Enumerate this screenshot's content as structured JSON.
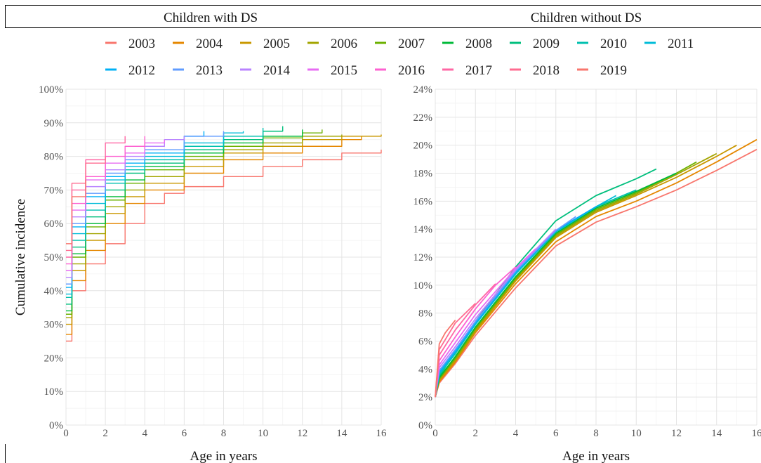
{
  "panels": {
    "left_title": "Children with DS",
    "right_title": "Children without DS"
  },
  "legend": {
    "entries": [
      {
        "label": "2003",
        "color": "#f8766d"
      },
      {
        "label": "2004",
        "color": "#e58700"
      },
      {
        "label": "2005",
        "color": "#c99800"
      },
      {
        "label": "2006",
        "color": "#a3a500"
      },
      {
        "label": "2007",
        "color": "#6bb100"
      },
      {
        "label": "2008",
        "color": "#00ba38"
      },
      {
        "label": "2009",
        "color": "#00bf7d"
      },
      {
        "label": "2010",
        "color": "#00c0af"
      },
      {
        "label": "2011",
        "color": "#00bcd8"
      },
      {
        "label": "2012",
        "color": "#00b0f6"
      },
      {
        "label": "2013",
        "color": "#619cff"
      },
      {
        "label": "2014",
        "color": "#b983ff"
      },
      {
        "label": "2015",
        "color": "#e76bf3"
      },
      {
        "label": "2016",
        "color": "#fd61d1"
      },
      {
        "label": "2017",
        "color": "#ff67a4"
      },
      {
        "label": "2018",
        "color": "#ff6c91"
      },
      {
        "label": "2019",
        "color": "#f8766d"
      }
    ]
  },
  "chart_data": [
    {
      "type": "line",
      "title": "Children with DS",
      "xlabel": "Age in years",
      "ylabel": "Cumulative incidence",
      "xlim": [
        0,
        16
      ],
      "ylim": [
        0,
        100
      ],
      "x_ticks": [
        "0",
        "2",
        "4",
        "6",
        "8",
        "10",
        "12",
        "14",
        "16"
      ],
      "y_ticks": [
        "0%",
        "10%",
        "20%",
        "30%",
        "40%",
        "50%",
        "60%",
        "70%",
        "80%",
        "90%",
        "100%"
      ],
      "grid": true,
      "series": [
        {
          "name": "2003",
          "x": [
            0,
            0.3,
            1,
            2,
            3,
            4,
            5,
            6,
            8,
            10,
            12,
            14,
            16
          ],
          "y": [
            25,
            40,
            48,
            54,
            60,
            66,
            69,
            71,
            74,
            77,
            79,
            81,
            82
          ]
        },
        {
          "name": "2004",
          "x": [
            0,
            0.3,
            1,
            2,
            3,
            4,
            6,
            8,
            10,
            12,
            14,
            15
          ],
          "y": [
            27,
            43,
            52,
            60,
            66,
            70,
            75,
            79,
            81,
            83,
            85,
            86
          ]
        },
        {
          "name": "2005",
          "x": [
            0,
            0.3,
            1,
            2,
            3,
            4,
            6,
            8,
            10,
            12,
            14,
            16
          ],
          "y": [
            30,
            46,
            55,
            63,
            68,
            72,
            77,
            81,
            83,
            85,
            86,
            86.5
          ]
        },
        {
          "name": "2006",
          "x": [
            0,
            0.3,
            1,
            2,
            3,
            4,
            6,
            8,
            10,
            12,
            14
          ],
          "y": [
            32,
            48,
            57,
            65,
            70,
            74,
            79,
            82,
            84,
            86,
            86.5
          ]
        },
        {
          "name": "2007",
          "x": [
            0,
            0.3,
            1,
            2,
            3,
            4,
            6,
            8,
            10,
            12,
            13
          ],
          "y": [
            33,
            50,
            59,
            67,
            72,
            76,
            80,
            83,
            85.5,
            87,
            88
          ]
        },
        {
          "name": "2008",
          "x": [
            0,
            0.3,
            1,
            2,
            3,
            4,
            6,
            8,
            10,
            12
          ],
          "y": [
            34,
            51,
            60,
            68,
            73,
            77,
            81,
            84,
            86,
            88
          ]
        },
        {
          "name": "2009",
          "x": [
            0,
            0.3,
            1,
            2,
            3,
            4,
            6,
            8,
            10,
            11
          ],
          "y": [
            36,
            53,
            62,
            70,
            75,
            78,
            82,
            85,
            87.5,
            89
          ]
        },
        {
          "name": "2010",
          "x": [
            0,
            0.3,
            1,
            2,
            3,
            4,
            6,
            8,
            10
          ],
          "y": [
            38,
            55,
            64,
            72,
            76,
            79,
            83,
            86,
            88.5
          ]
        },
        {
          "name": "2011",
          "x": [
            0,
            0.3,
            1,
            2,
            3,
            4,
            6,
            8,
            9
          ],
          "y": [
            39,
            57,
            66,
            73,
            77,
            80,
            84,
            87,
            87.5
          ]
        },
        {
          "name": "2012",
          "x": [
            0,
            0.3,
            1,
            2,
            3,
            4,
            6,
            7
          ],
          "y": [
            41,
            59,
            68,
            74,
            78,
            81,
            86,
            87.5
          ]
        },
        {
          "name": "2013",
          "x": [
            0,
            0.3,
            1,
            2,
            3,
            4,
            6,
            8
          ],
          "y": [
            42,
            60,
            69,
            75,
            79,
            82,
            86,
            87.5
          ]
        },
        {
          "name": "2014",
          "x": [
            0,
            0.3,
            1,
            2,
            3,
            4,
            5,
            6
          ],
          "y": [
            44,
            62,
            71,
            76,
            80,
            83,
            85,
            86
          ]
        },
        {
          "name": "2015",
          "x": [
            0,
            0.3,
            1,
            2,
            3,
            4,
            5
          ],
          "y": [
            46,
            64,
            73,
            78,
            81,
            84,
            85
          ]
        },
        {
          "name": "2016",
          "x": [
            0,
            0.3,
            1,
            2,
            3,
            4
          ],
          "y": [
            48,
            66,
            74,
            80,
            83,
            86
          ]
        },
        {
          "name": "2017",
          "x": [
            0,
            0.3,
            1,
            2,
            3
          ],
          "y": [
            50,
            70,
            79,
            84,
            86
          ]
        },
        {
          "name": "2018",
          "x": [
            0,
            0.3,
            1,
            2
          ],
          "y": [
            52,
            72,
            78,
            80
          ]
        },
        {
          "name": "2019",
          "x": [
            0,
            0.3,
            1
          ],
          "y": [
            54,
            68,
            73
          ]
        }
      ]
    },
    {
      "type": "line",
      "title": "Children without DS",
      "xlabel": "Age in years",
      "ylabel": "",
      "xlim": [
        0,
        16
      ],
      "ylim": [
        0,
        24
      ],
      "x_ticks": [
        "0",
        "2",
        "4",
        "6",
        "8",
        "10",
        "12",
        "14",
        "16"
      ],
      "y_ticks": [
        "0%",
        "2%",
        "4%",
        "6%",
        "8%",
        "10%",
        "12%",
        "14%",
        "16%",
        "18%",
        "20%",
        "22%",
        "24%"
      ],
      "grid": true,
      "series": [
        {
          "name": "2003",
          "x": [
            0,
            0.2,
            1,
            2,
            4,
            6,
            8,
            10,
            12,
            14,
            16
          ],
          "y": [
            2,
            3.0,
            4.4,
            6.4,
            9.8,
            12.8,
            14.5,
            15.6,
            16.8,
            18.2,
            19.7
          ]
        },
        {
          "name": "2004",
          "x": [
            0,
            0.2,
            1,
            2,
            4,
            6,
            8,
            10,
            12,
            14,
            16
          ],
          "y": [
            2,
            3.1,
            4.5,
            6.6,
            10.1,
            13.1,
            14.9,
            16.0,
            17.3,
            18.8,
            20.4
          ]
        },
        {
          "name": "2005",
          "x": [
            0,
            0.2,
            1,
            2,
            4,
            6,
            8,
            10,
            12,
            14,
            15
          ],
          "y": [
            2,
            3.2,
            4.6,
            6.7,
            10.3,
            13.4,
            15.2,
            16.4,
            17.7,
            19.2,
            20.0
          ]
        },
        {
          "name": "2006",
          "x": [
            0,
            0.2,
            1,
            2,
            4,
            6,
            8,
            10,
            12,
            14
          ],
          "y": [
            2,
            3.3,
            4.7,
            6.8,
            10.4,
            13.5,
            15.3,
            16.5,
            17.9,
            19.4
          ]
        },
        {
          "name": "2007",
          "x": [
            0,
            0.2,
            1,
            2,
            4,
            6,
            8,
            10,
            12,
            13
          ],
          "y": [
            2,
            3.3,
            4.8,
            6.9,
            10.5,
            13.6,
            15.4,
            16.6,
            18.0,
            18.8
          ]
        },
        {
          "name": "2008",
          "x": [
            0,
            0.2,
            1,
            2,
            4,
            6,
            8,
            10,
            12
          ],
          "y": [
            2,
            3.4,
            4.9,
            7.0,
            10.6,
            13.7,
            15.5,
            16.7,
            18.0
          ]
        },
        {
          "name": "2009",
          "x": [
            0,
            0.2,
            1,
            2,
            4,
            6,
            8,
            10,
            11
          ],
          "y": [
            2,
            3.5,
            5.2,
            7.4,
            11.3,
            14.6,
            16.4,
            17.6,
            18.3
          ]
        },
        {
          "name": "2010",
          "x": [
            0,
            0.2,
            1,
            2,
            4,
            6,
            8,
            9,
            10
          ],
          "y": [
            2,
            3.6,
            5.1,
            7.2,
            10.8,
            13.9,
            15.6,
            16.2,
            16.8
          ]
        },
        {
          "name": "2011",
          "x": [
            0,
            0.2,
            1,
            2,
            4,
            6,
            8,
            9
          ],
          "y": [
            2,
            3.7,
            5.2,
            7.2,
            10.8,
            13.8,
            15.6,
            16.4
          ]
        },
        {
          "name": "2012",
          "x": [
            0,
            0.2,
            1,
            2,
            4,
            6,
            8
          ],
          "y": [
            2,
            3.8,
            5.3,
            7.3,
            10.9,
            13.9,
            15.6
          ]
        },
        {
          "name": "2013",
          "x": [
            0,
            0.2,
            1,
            2,
            4,
            6,
            7
          ],
          "y": [
            2,
            3.9,
            5.4,
            7.4,
            11.0,
            13.9,
            14.9
          ]
        },
        {
          "name": "2014",
          "x": [
            0,
            0.2,
            1,
            2,
            4,
            6
          ],
          "y": [
            2,
            4.1,
            5.6,
            7.6,
            11.1,
            14.0
          ]
        },
        {
          "name": "2015",
          "x": [
            0,
            0.2,
            1,
            2,
            4,
            5
          ],
          "y": [
            2,
            4.3,
            5.9,
            7.9,
            11.2,
            12.6
          ]
        },
        {
          "name": "2016",
          "x": [
            0,
            0.2,
            1,
            2,
            3,
            4
          ],
          "y": [
            2,
            4.6,
            6.3,
            8.3,
            10.0,
            11.3
          ]
        },
        {
          "name": "2017",
          "x": [
            0,
            0.2,
            1,
            2,
            3
          ],
          "y": [
            2,
            5.0,
            6.8,
            8.6,
            10.1
          ]
        },
        {
          "name": "2018",
          "x": [
            0,
            0.2,
            1,
            2
          ],
          "y": [
            2,
            5.4,
            7.3,
            8.7
          ]
        },
        {
          "name": "2019",
          "x": [
            0,
            0.2,
            0.5,
            1
          ],
          "y": [
            2,
            5.8,
            6.6,
            7.5
          ]
        }
      ]
    }
  ]
}
